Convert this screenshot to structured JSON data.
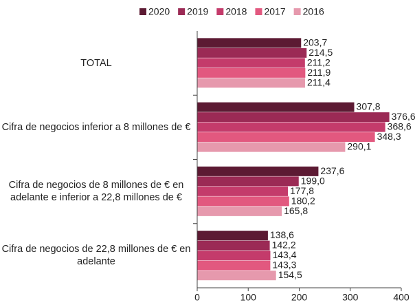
{
  "chart_data": {
    "type": "barh",
    "categories": [
      "TOTAL",
      "Cifra de negocios inferior a 8 millones de €",
      "Cifra de negocios de 8 millones de € en adelante e inferior a 22,8 millones de €",
      "Cifra de negocios de 22,8 millones de € en adelante"
    ],
    "series": [
      {
        "name": "2020",
        "color": "#5c1a33",
        "values": [
          203.7,
          307.8,
          237.6,
          138.6
        ],
        "value_labels": [
          "203,7",
          "307,8",
          "237,6",
          "138,6"
        ]
      },
      {
        "name": "2019",
        "color": "#9b2a55",
        "values": [
          214.5,
          376.6,
          199.0,
          142.2
        ],
        "value_labels": [
          "214,5",
          "376,6",
          "199,0",
          "142,2"
        ]
      },
      {
        "name": "2018",
        "color": "#c43b6b",
        "values": [
          211.2,
          368.6,
          177.8,
          143.4
        ],
        "value_labels": [
          "211,2",
          "368,6",
          "177,8",
          "143,4"
        ]
      },
      {
        "name": "2017",
        "color": "#e2587f",
        "values": [
          211.9,
          348.3,
          180.2,
          143.3
        ],
        "value_labels": [
          "211,9",
          "348,3",
          "180,2",
          "143,3"
        ]
      },
      {
        "name": "2016",
        "color": "#e699ad",
        "values": [
          211.4,
          290.1,
          165.8,
          154.5
        ],
        "value_labels": [
          "211,4",
          "290,1",
          "165,8",
          "154,5"
        ]
      }
    ],
    "xlim": [
      0,
      400
    ],
    "xticks": [
      0,
      100,
      200,
      300,
      400
    ],
    "legend": "top"
  }
}
